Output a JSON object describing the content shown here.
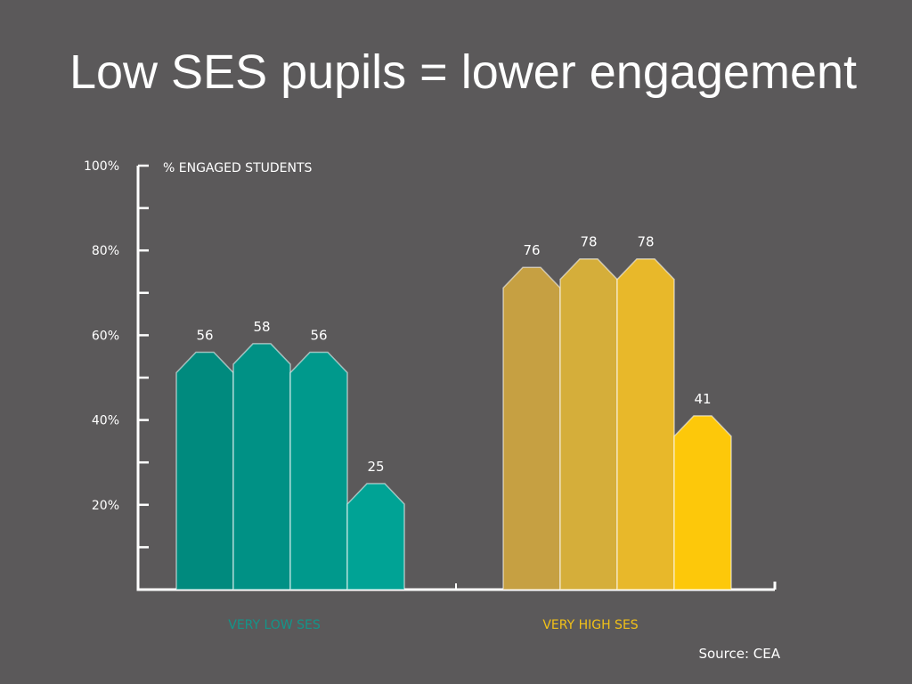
{
  "chart_data": {
    "type": "bar",
    "title": "Low SES pupils = lower engagement",
    "ylabel": "% ENGAGED STUDENTS",
    "xlabel": "",
    "ylim": [
      0,
      100
    ],
    "yticks": [
      {
        "value": 100,
        "label": "100%"
      },
      {
        "value": 80,
        "label": "80%"
      },
      {
        "value": 60,
        "label": "60%"
      },
      {
        "value": 40,
        "label": "40%"
      },
      {
        "value": 20,
        "label": "20%"
      }
    ],
    "minor_ticks": [
      90,
      70,
      50,
      30,
      10
    ],
    "grid": false,
    "legend": "none",
    "groups": [
      {
        "name": "VERY LOW SES",
        "color": "#13958a",
        "values": [
          56,
          58,
          56,
          25
        ],
        "bar_colors": [
          "#008a7e",
          "#009185",
          "#00998c",
          "#00a395"
        ]
      },
      {
        "name": "VERY HIGH SES",
        "color": "#f2c118",
        "values": [
          76,
          78,
          78,
          41
        ],
        "bar_colors": [
          "#c6a042",
          "#d5ae3a",
          "#e8b82a",
          "#fdc80a"
        ]
      }
    ],
    "source": "Source: CEA"
  },
  "title": "Low SES pupils = lower engagement",
  "source": "Source: CEA"
}
